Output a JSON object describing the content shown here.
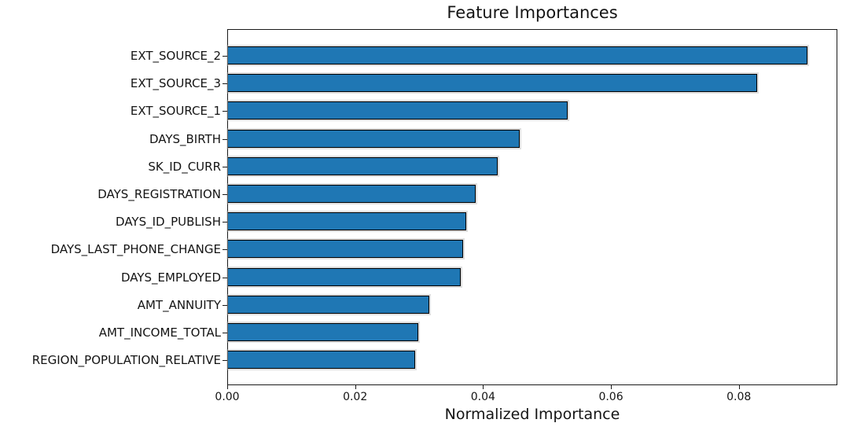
{
  "title": "Feature Importances",
  "xlabel": "Normalized Importance",
  "colors": {
    "bar_fill": "#1f77b4",
    "bar_edge": "#000000",
    "spine": "#1a1a1a",
    "background": "#ffffff",
    "text": "#141414"
  },
  "chart_data": {
    "type": "bar",
    "orientation": "horizontal",
    "title": "Feature Importances",
    "xlabel": "Normalized Importance",
    "ylabel": "",
    "categories": [
      "EXT_SOURCE_2",
      "EXT_SOURCE_3",
      "EXT_SOURCE_1",
      "DAYS_BIRTH",
      "SK_ID_CURR",
      "DAYS_REGISTRATION",
      "DAYS_ID_PUBLISH",
      "DAYS_LAST_PHONE_CHANGE",
      "DAYS_EMPLOYED",
      "AMT_ANNUITY",
      "AMT_INCOME_TOTAL",
      "REGION_POPULATION_RELATIVE"
    ],
    "values": [
      0.0908,
      0.083,
      0.0533,
      0.0457,
      0.0423,
      0.0388,
      0.0373,
      0.0368,
      0.0365,
      0.0316,
      0.0298,
      0.0293
    ],
    "xlim": [
      0,
      0.0954
    ],
    "xticks": [
      0,
      0.02,
      0.04,
      0.06,
      0.08
    ],
    "xtick_labels": [
      "0.00",
      "0.02",
      "0.04",
      "0.06",
      "0.08"
    ],
    "grid": false,
    "legend": false
  }
}
